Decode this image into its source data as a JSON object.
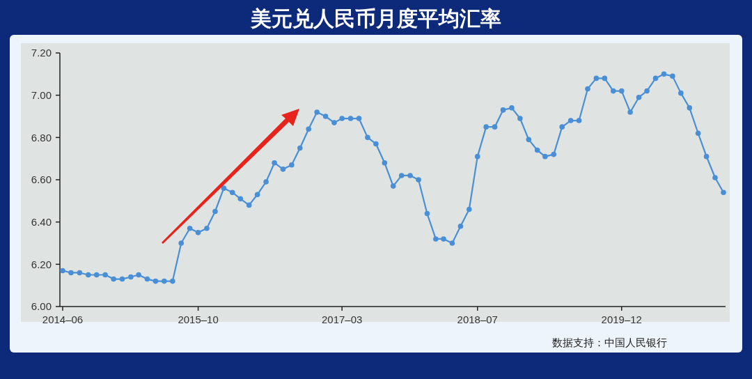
{
  "chart_data": {
    "type": "line",
    "title": "美元兑人民币月度平均汇率",
    "x": [
      "2014-06",
      "2014-07",
      "2014-08",
      "2014-09",
      "2014-10",
      "2014-11",
      "2014-12",
      "2015-01",
      "2015-02",
      "2015-03",
      "2015-04",
      "2015-05",
      "2015-06",
      "2015-07",
      "2015-08",
      "2015-09",
      "2015-10",
      "2015-11",
      "2015-12",
      "2016-01",
      "2016-02",
      "2016-03",
      "2016-04",
      "2016-05",
      "2016-06",
      "2016-07",
      "2016-08",
      "2016-09",
      "2016-10",
      "2016-11",
      "2016-12",
      "2017-01",
      "2017-02",
      "2017-03",
      "2017-04",
      "2017-05",
      "2017-06",
      "2017-07",
      "2017-08",
      "2017-09",
      "2017-10",
      "2017-11",
      "2017-12",
      "2018-01",
      "2018-02",
      "2018-03",
      "2018-04",
      "2018-05",
      "2018-06",
      "2018-07",
      "2018-08",
      "2018-09",
      "2018-10",
      "2018-11",
      "2018-12",
      "2019-01",
      "2019-02",
      "2019-03",
      "2019-04",
      "2019-05",
      "2019-06",
      "2019-07",
      "2019-08",
      "2019-09",
      "2019-10",
      "2019-11",
      "2019-12",
      "2020-01",
      "2020-02",
      "2020-03",
      "2020-04",
      "2020-05",
      "2020-06",
      "2020-07",
      "2020-08",
      "2020-09",
      "2020-10",
      "2020-11",
      "2020-12"
    ],
    "series": [
      {
        "color": "#4a8fd6",
        "values": [
          6.17,
          6.16,
          6.16,
          6.15,
          6.15,
          6.15,
          6.13,
          6.13,
          6.14,
          6.15,
          6.13,
          6.12,
          6.12,
          6.12,
          6.3,
          6.37,
          6.35,
          6.37,
          6.45,
          6.56,
          6.54,
          6.51,
          6.48,
          6.53,
          6.59,
          6.68,
          6.65,
          6.67,
          6.75,
          6.84,
          6.92,
          6.9,
          6.87,
          6.89,
          6.89,
          6.89,
          6.8,
          6.77,
          6.68,
          6.57,
          6.62,
          6.62,
          6.6,
          6.44,
          6.32,
          6.32,
          6.3,
          6.38,
          6.46,
          6.71,
          6.85,
          6.85,
          6.93,
          6.94,
          6.89,
          6.79,
          6.74,
          6.71,
          6.72,
          6.85,
          6.88,
          6.88,
          7.03,
          7.08,
          7.08,
          7.02,
          7.02,
          6.92,
          6.99,
          7.02,
          7.08,
          7.1,
          7.09,
          7.01,
          6.94,
          6.82,
          6.71,
          6.61,
          6.54
        ]
      }
    ],
    "xlim": [
      "2014-06",
      "2020-12"
    ],
    "xticks": [
      {
        "value": "2014-06",
        "label": "2014–06"
      },
      {
        "value": "2015-10",
        "label": "2015–10"
      },
      {
        "value": "2017-03",
        "label": "2017–03"
      },
      {
        "value": "2018-07",
        "label": "2018–07"
      },
      {
        "value": "2019-12",
        "label": "2019–12"
      }
    ],
    "ylim": [
      6.0,
      7.2
    ],
    "yticks": [
      {
        "value": 6.0,
        "label": "6.00"
      },
      {
        "value": 6.2,
        "label": "6.20"
      },
      {
        "value": 6.4,
        "label": "6.40"
      },
      {
        "value": 6.6,
        "label": "6.60"
      },
      {
        "value": 6.8,
        "label": "6.80"
      },
      {
        "value": 7.0,
        "label": "7.00"
      },
      {
        "value": 7.2,
        "label": "7.20"
      }
    ],
    "marker": "circle",
    "line_style": "solid",
    "grid": false,
    "annotations": [
      "数据支持：中国人民银行"
    ]
  }
}
